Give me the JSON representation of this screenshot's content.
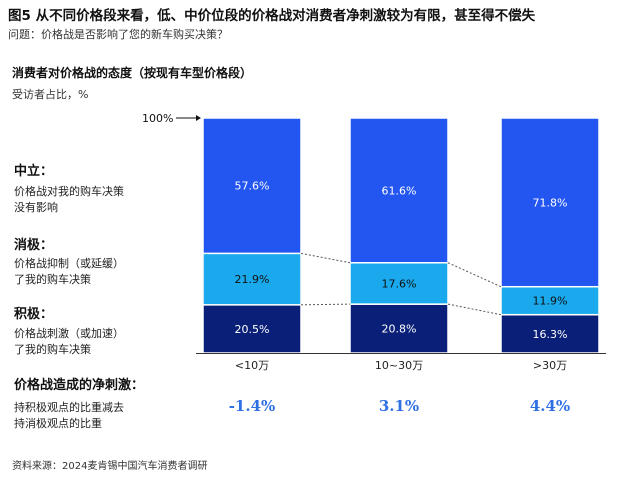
{
  "header": {
    "title": "图5 从不同价格段来看，低、中价位段的价格战对消费者净刺激较为有限，甚至得不偿失",
    "question": "问题：价格战是否影响了您的新车购买决策？",
    "subtitle": "消费者对价格战的态度（按现有车型价格段）",
    "unit": "受访者占比，%"
  },
  "legend_blocks": {
    "neutral": {
      "head": "中立：",
      "desc_line1": "价格战对我的购车决策",
      "desc_line2": "没有影响"
    },
    "negative": {
      "head": "消极：",
      "desc_line1": "价格战抑制（或延缓）",
      "desc_line2": "了我的购车决策"
    },
    "positive": {
      "head": "积极：",
      "desc_line1": "价格战刺激（或加速）",
      "desc_line2": "了我的购车决策"
    }
  },
  "footer": {
    "head": "价格战造成的净刺激：",
    "desc_line1": "持积极观点的比重减去",
    "desc_line2": "持消极观点的比重",
    "source": "资料来源：2024麦肯锡中国汽车消费者调研"
  },
  "colors": {
    "positive": "#0a2078",
    "negative": "#19a9ec",
    "neutral": "#2356f0",
    "net_text": "#2f6fe4"
  },
  "chart_data": {
    "type": "bar",
    "stacked": true,
    "normalized_100": true,
    "top_label": "100%",
    "categories": [
      "<10万",
      "10~30万",
      ">30万"
    ],
    "series": [
      {
        "name": "积极",
        "values": [
          20.5,
          20.8,
          16.3
        ],
        "labels": [
          "20.5%",
          "20.8%",
          "16.3%"
        ]
      },
      {
        "name": "消极",
        "values": [
          21.9,
          17.6,
          11.9
        ],
        "labels": [
          "21.9%",
          "17.6%",
          "11.9%"
        ]
      },
      {
        "name": "中立",
        "values": [
          57.6,
          61.6,
          71.8
        ],
        "labels": [
          "57.6%",
          "61.6%",
          "71.8%"
        ]
      }
    ],
    "net_stimulus": [
      "-1.4%",
      "3.1%",
      "4.4%"
    ],
    "ylim": [
      0,
      100
    ]
  }
}
